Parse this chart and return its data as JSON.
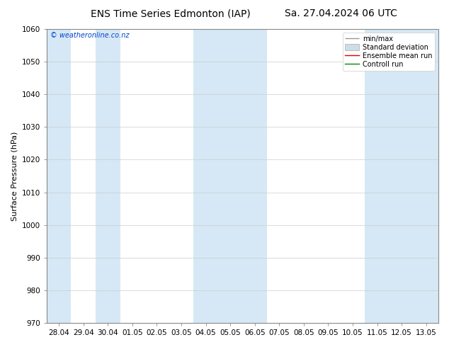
{
  "title_left": "ENS Time Series Edmonton (IAP)",
  "title_right": "Sa. 27.04.2024 06 UTC",
  "ylabel": "Surface Pressure (hPa)",
  "ylim": [
    970,
    1060
  ],
  "yticks": [
    970,
    980,
    990,
    1000,
    1010,
    1020,
    1030,
    1040,
    1050,
    1060
  ],
  "x_labels": [
    "28.04",
    "29.04",
    "30.04",
    "01.05",
    "02.05",
    "03.05",
    "04.05",
    "05.05",
    "06.05",
    "07.05",
    "08.05",
    "09.05",
    "10.05",
    "11.05",
    "12.05",
    "13.05"
  ],
  "watermark": "© weatheronline.co.nz",
  "background_color": "#ffffff",
  "shade_color": "#d6e8f5",
  "legend_items": [
    {
      "label": "min/max",
      "color": "#aaaaaa"
    },
    {
      "label": "Standard deviation",
      "color": "#cccccc"
    },
    {
      "label": "Ensemble mean run",
      "color": "#dd0000"
    },
    {
      "label": "Controll run",
      "color": "#008800"
    }
  ],
  "shaded_x_indices": [
    0,
    2,
    6,
    7,
    8,
    13,
    14,
    15
  ],
  "title_fontsize": 10,
  "axis_label_fontsize": 8,
  "tick_fontsize": 7.5
}
